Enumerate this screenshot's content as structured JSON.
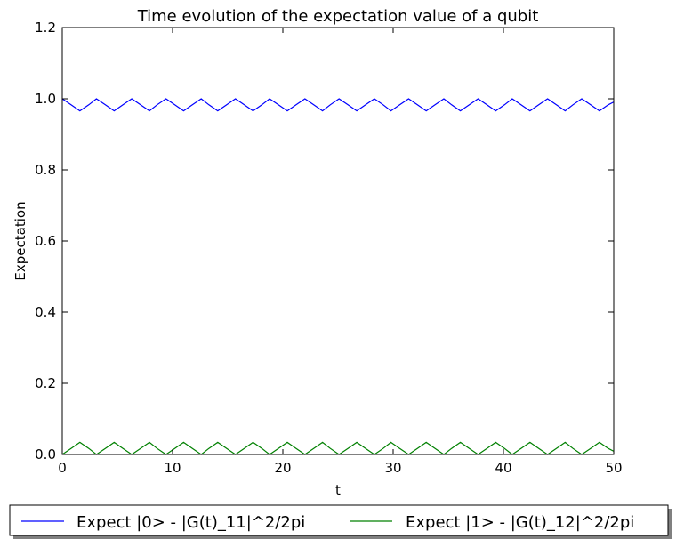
{
  "chart_data": {
    "type": "line",
    "title": "Time evolution of the expectation value of a qubit",
    "xlabel": "t",
    "ylabel": "Expectation",
    "xlim": [
      0,
      50
    ],
    "ylim": [
      0,
      1.2
    ],
    "xticks": [
      0,
      10,
      20,
      30,
      40,
      50
    ],
    "xtick_labels": [
      "0",
      "10",
      "20",
      "30",
      "40",
      "50"
    ],
    "yticks": [
      0.0,
      0.2,
      0.4,
      0.6,
      0.8,
      1.0,
      1.2
    ],
    "ytick_labels": [
      "0.0",
      "0.2",
      "0.4",
      "0.6",
      "0.8",
      "1.0",
      "1.2"
    ],
    "grid": false,
    "legend_position": "bottom-outside",
    "series": [
      {
        "name": "Expect |0> - |G(t)_11|^2/2pi",
        "color": "#0000ff",
        "x": [
          0,
          0.8,
          1.6,
          2.4,
          3.1,
          3.9,
          4.7,
          5.5,
          6.3,
          7.1,
          7.9,
          8.6,
          9.4,
          10.2,
          11.0,
          11.8,
          12.6,
          13.3,
          14.1,
          14.9,
          15.7,
          16.5,
          17.3,
          18.1,
          18.8,
          19.6,
          20.4,
          21.2,
          22.0,
          22.8,
          23.6,
          24.3,
          25.1,
          25.9,
          26.7,
          27.5,
          28.3,
          29.1,
          29.8,
          30.6,
          31.4,
          32.2,
          33.0,
          33.8,
          34.6,
          35.3,
          36.1,
          36.9,
          37.7,
          38.5,
          39.3,
          40.1,
          40.8,
          41.6,
          42.4,
          43.2,
          44.0,
          44.8,
          45.6,
          46.3,
          47.1,
          47.9,
          48.7,
          49.5,
          50.0
        ],
        "y": [
          1.0,
          0.983,
          0.966,
          0.983,
          1.0,
          0.983,
          0.966,
          0.983,
          1.0,
          0.983,
          0.966,
          0.983,
          1.0,
          0.983,
          0.966,
          0.983,
          1.0,
          0.983,
          0.966,
          0.983,
          1.0,
          0.983,
          0.966,
          0.983,
          1.0,
          0.983,
          0.966,
          0.983,
          1.0,
          0.983,
          0.966,
          0.983,
          1.0,
          0.983,
          0.966,
          0.983,
          1.0,
          0.983,
          0.966,
          0.983,
          1.0,
          0.983,
          0.966,
          0.983,
          1.0,
          0.983,
          0.966,
          0.983,
          1.0,
          0.983,
          0.966,
          0.983,
          1.0,
          0.983,
          0.966,
          0.983,
          1.0,
          0.983,
          0.966,
          0.983,
          1.0,
          0.983,
          0.966,
          0.983,
          0.991
        ]
      },
      {
        "name": "Expect |1> - |G(t)_12|^2/2pi",
        "color": "#008000",
        "x": [
          0,
          0.8,
          1.6,
          2.4,
          3.1,
          3.9,
          4.7,
          5.5,
          6.3,
          7.1,
          7.9,
          8.6,
          9.4,
          10.2,
          11.0,
          11.8,
          12.6,
          13.3,
          14.1,
          14.9,
          15.7,
          16.5,
          17.3,
          18.1,
          18.8,
          19.6,
          20.4,
          21.2,
          22.0,
          22.8,
          23.6,
          24.3,
          25.1,
          25.9,
          26.7,
          27.5,
          28.3,
          29.1,
          29.8,
          30.6,
          31.4,
          32.2,
          33.0,
          33.8,
          34.6,
          35.3,
          36.1,
          36.9,
          37.7,
          38.5,
          39.3,
          40.1,
          40.8,
          41.6,
          42.4,
          43.2,
          44.0,
          44.8,
          45.6,
          46.3,
          47.1,
          47.9,
          48.7,
          49.5,
          50.0
        ],
        "y": [
          0.0,
          0.017,
          0.034,
          0.017,
          0.0,
          0.017,
          0.034,
          0.017,
          0.0,
          0.017,
          0.034,
          0.017,
          0.0,
          0.017,
          0.034,
          0.017,
          0.0,
          0.017,
          0.034,
          0.017,
          0.0,
          0.017,
          0.034,
          0.017,
          0.0,
          0.017,
          0.034,
          0.017,
          0.0,
          0.017,
          0.034,
          0.017,
          0.0,
          0.017,
          0.034,
          0.017,
          0.0,
          0.017,
          0.034,
          0.017,
          0.0,
          0.017,
          0.034,
          0.017,
          0.0,
          0.017,
          0.034,
          0.017,
          0.0,
          0.017,
          0.034,
          0.017,
          0.0,
          0.017,
          0.034,
          0.017,
          0.0,
          0.017,
          0.034,
          0.017,
          0.0,
          0.017,
          0.034,
          0.017,
          0.009
        ]
      }
    ]
  }
}
